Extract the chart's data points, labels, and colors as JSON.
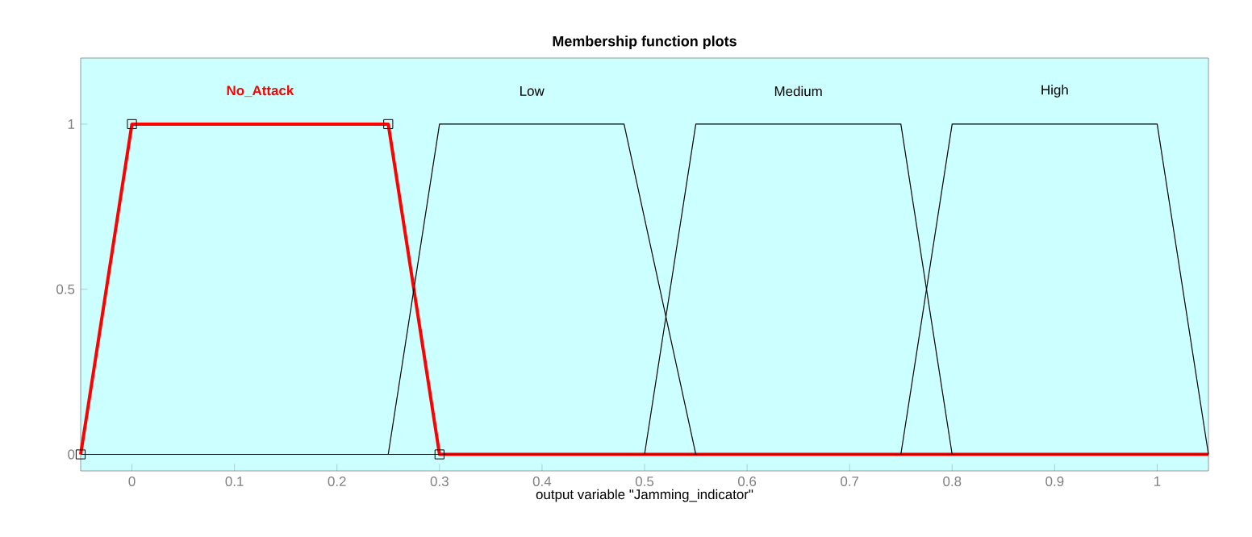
{
  "chart_data": {
    "type": "line",
    "title": "Membership function plots",
    "xlabel": "output variable \"Jamming_indicator\"",
    "xlim": [
      -0.05,
      1.05
    ],
    "ylim": [
      -0.05,
      1.2
    ],
    "xticks": [
      0,
      0.1,
      0.2,
      0.3,
      0.4,
      0.5,
      0.6,
      0.7,
      0.8,
      0.9,
      1
    ],
    "yticks": [
      0,
      0.5,
      1
    ],
    "series": [
      {
        "name": "No_Attack",
        "color": "#ff0000",
        "marker": "square",
        "x": [
          -0.05,
          0,
          0.25,
          0.3,
          1.05
        ],
        "values": [
          0,
          1,
          1,
          0,
          0
        ]
      },
      {
        "name": "Low",
        "color": "#000000",
        "x": [
          -0.05,
          0.25,
          0.3,
          0.48,
          0.55,
          1.05
        ],
        "values": [
          0,
          0,
          1,
          1,
          0,
          0
        ]
      },
      {
        "name": "Medium",
        "color": "#000000",
        "x": [
          -0.05,
          0.5,
          0.55,
          0.75,
          0.8,
          1.05
        ],
        "values": [
          0,
          0,
          1,
          1,
          0,
          0
        ]
      },
      {
        "name": "High",
        "color": "#000000",
        "x": [
          -0.05,
          0.75,
          0.8,
          1.0,
          1.05
        ],
        "values": [
          0,
          0,
          1,
          1,
          0
        ]
      }
    ]
  }
}
